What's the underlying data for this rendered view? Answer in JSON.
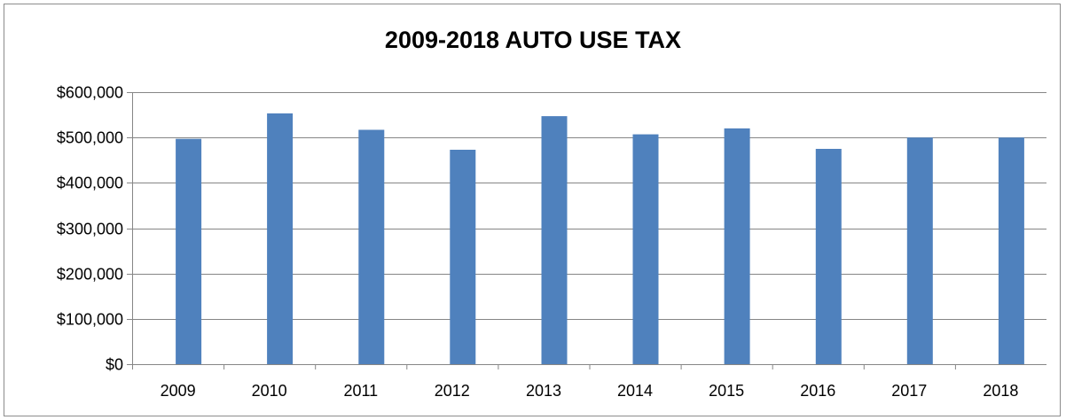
{
  "chart_data": {
    "type": "bar",
    "title": "2009-2018 AUTO USE TAX",
    "xlabel": "",
    "ylabel": "",
    "categories": [
      "2009",
      "2010",
      "2011",
      "2012",
      "2013",
      "2014",
      "2015",
      "2016",
      "2017",
      "2018"
    ],
    "values": [
      497000,
      553000,
      517000,
      473000,
      547000,
      507000,
      520000,
      475000,
      500000,
      500000
    ],
    "ylim": [
      0,
      600000
    ],
    "yticks": [
      0,
      100000,
      200000,
      300000,
      400000,
      500000,
      600000
    ],
    "ytick_labels": [
      "$0",
      "$100,000",
      "$200,000",
      "$300,000",
      "$400,000",
      "$500,000",
      "$600,000"
    ],
    "grid": true,
    "legend": "none",
    "bar_color": "#4f81bd",
    "grid_color": "#868686"
  }
}
